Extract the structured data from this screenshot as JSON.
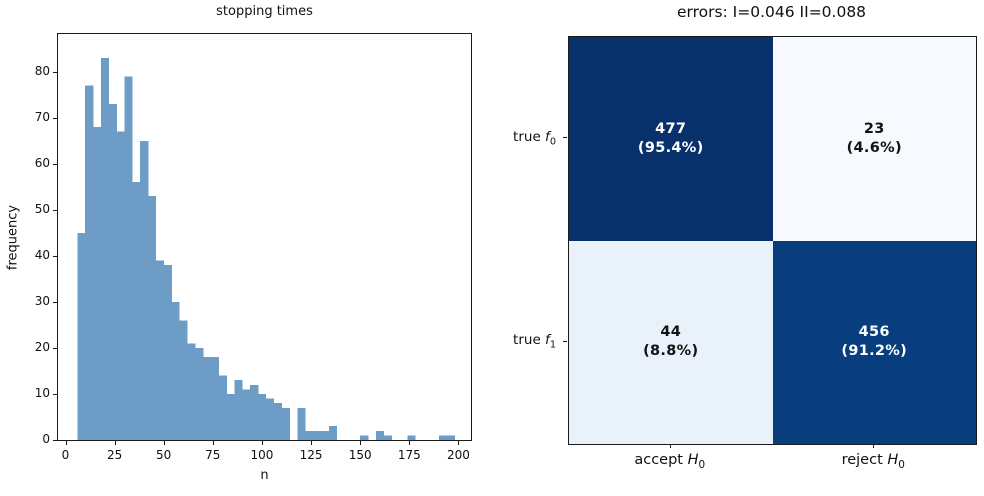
{
  "figure": {
    "background": "#ffffff"
  },
  "left_plot": {
    "title": "stopping times",
    "xlabel": "n",
    "ylabel": "frequency"
  },
  "confusion": {
    "title": "errors: I=0.046 II=0.088",
    "cells": [
      {
        "count": "477",
        "pct": "(95.4%)",
        "bg": "#08306b",
        "fg": "#ffffff"
      },
      {
        "count": "23",
        "pct": "(4.6%)",
        "bg": "#f6fafe",
        "fg": "#111111"
      },
      {
        "count": "44",
        "pct": "(8.8%)",
        "bg": "#e9f1fa",
        "fg": "#111111"
      },
      {
        "count": "456",
        "pct": "(91.2%)",
        "bg": "#083d7e",
        "fg": "#ffffff"
      }
    ],
    "rows": [
      {
        "prefix": "true ",
        "sym": "f",
        "sub": "0"
      },
      {
        "prefix": "true ",
        "sym": "f",
        "sub": "1"
      }
    ],
    "cols": [
      {
        "prefix": "accept ",
        "sym": "H",
        "sub": "0"
      },
      {
        "prefix": "reject ",
        "sym": "H",
        "sub": "0"
      }
    ]
  },
  "chart_data": [
    {
      "type": "bar",
      "subtype": "histogram",
      "title": "stopping times",
      "xlabel": "n",
      "ylabel": "frequency",
      "bar_color": "#6d9dc6",
      "bin_start": 6,
      "bin_width": 4,
      "values": [
        45,
        77,
        68,
        83,
        73,
        67,
        79,
        56,
        65,
        53,
        39,
        38,
        30,
        26,
        21,
        20,
        18,
        18,
        14,
        10,
        13,
        11,
        12,
        10,
        9,
        8,
        7,
        0,
        7,
        2,
        2,
        2,
        3,
        0,
        0,
        0,
        1,
        0,
        2,
        1,
        0,
        0,
        1,
        0,
        0,
        0,
        1,
        1
      ],
      "xticks": [
        0,
        25,
        50,
        75,
        100,
        125,
        150,
        175,
        200
      ],
      "yticks": [
        0,
        10,
        20,
        30,
        40,
        50,
        60,
        70,
        80
      ],
      "xlim": [
        -3.8,
        206.4
      ],
      "ylim": [
        0,
        88.2
      ],
      "grid": false,
      "legend": null
    },
    {
      "type": "heatmap",
      "title": "errors: I=0.046 II=0.088",
      "row_labels": [
        "true f0",
        "true f1"
      ],
      "col_labels": [
        "accept H0",
        "reject H0"
      ],
      "values": [
        [
          477,
          23
        ],
        [
          44,
          456
        ]
      ],
      "percent_labels": [
        [
          "(95.4%)",
          "(4.6%)"
        ],
        [
          "(8.8%)",
          "(91.2%)"
        ]
      ],
      "cell_colors": [
        [
          "#08306b",
          "#f6fafe"
        ],
        [
          "#e9f1fa",
          "#083d7e"
        ]
      ],
      "type_I_error": 0.046,
      "type_II_error": 0.088
    }
  ]
}
